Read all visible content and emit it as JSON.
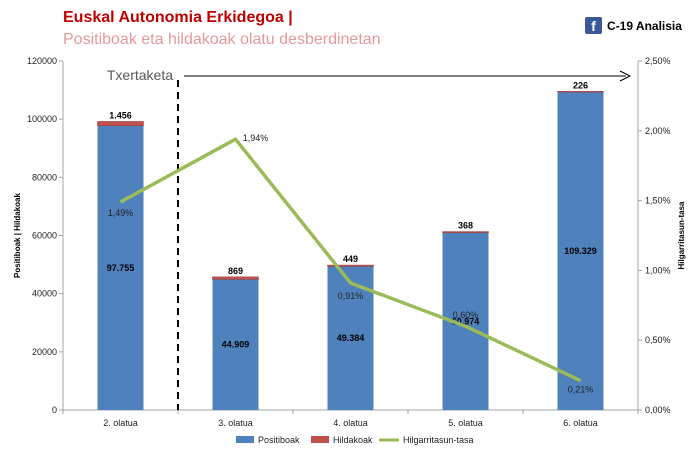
{
  "header": {
    "title": "Euskal Autonomia Erkidegoa |",
    "subtitle": "Positiboak eta hildakoak olatu desberdinetan",
    "brand_icon": "facebook-icon",
    "brand_text": "C-19 Analisia"
  },
  "colors": {
    "positive": "#4f81bd",
    "deaths": "#c0504d",
    "rate": "#9bbb59",
    "title": "#c00000",
    "subtitle": "#e39a9a"
  },
  "chart_data": {
    "type": "bar",
    "categories": [
      "2. olatua",
      "3. olatua",
      "4. olatua",
      "5. olatua",
      "6. olatua"
    ],
    "series": [
      {
        "name": "Positiboak",
        "type": "bar",
        "axis": "left",
        "values": [
          97755,
          44909,
          49384,
          60974,
          109329
        ],
        "labels": [
          "97.755",
          "44.909",
          "49.384",
          "60.974",
          "109.329"
        ]
      },
      {
        "name": "Hildakoak",
        "type": "bar",
        "axis": "left",
        "stacked": true,
        "values": [
          1456,
          869,
          449,
          368,
          226
        ],
        "labels": [
          "1.456",
          "869",
          "449",
          "368",
          "226"
        ]
      },
      {
        "name": "Hilgarritasun-tasa",
        "type": "line",
        "axis": "right",
        "values": [
          1.49,
          1.94,
          0.91,
          0.6,
          0.21
        ],
        "labels": [
          "1,49%",
          "1,94%",
          "0,91%",
          "0,60%",
          "0,21%"
        ]
      }
    ],
    "ylabel": "Positiboak | Hildakoak",
    "y2label": "Hilgarritasun-tasa",
    "ylim": [
      0,
      120000
    ],
    "y2lim": [
      0,
      2.5
    ],
    "yticks": [
      "0",
      "20000",
      "40000",
      "60000",
      "80000",
      "100000",
      "120000"
    ],
    "y2ticks": [
      "0,00%",
      "0,50%",
      "1,00%",
      "1,50%",
      "2,00%",
      "2,50%"
    ],
    "annotation": {
      "text": "Txertaketa",
      "from_category": "3. olatua",
      "style": "dashed vertical line with arrow to right"
    },
    "legend": "bottom",
    "grid": false
  }
}
